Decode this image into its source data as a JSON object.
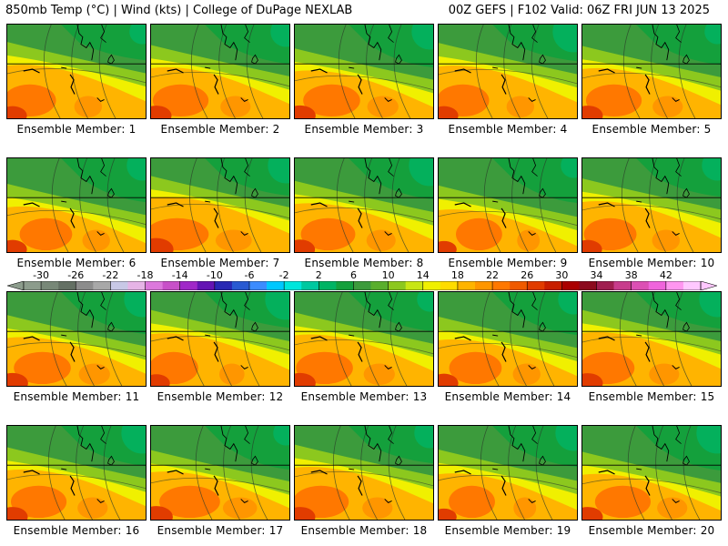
{
  "header": {
    "left_title": "850mb Temp (°C) | Wind (kts) | College of DuPage NEXLAB",
    "right_title": "00Z GEFS | F102 Valid: 06Z FRI JUN 13 2025"
  },
  "members": [
    {
      "label": "Ensemble Member: 1",
      "warmth": 0.55
    },
    {
      "label": "Ensemble Member: 2",
      "warmth": 0.6
    },
    {
      "label": "Ensemble Member: 3",
      "warmth": 0.62
    },
    {
      "label": "Ensemble Member: 4",
      "warmth": 0.55
    },
    {
      "label": "Ensemble Member: 5",
      "warmth": 0.6
    },
    {
      "label": "Ensemble Member: 6",
      "warmth": 0.55
    },
    {
      "label": "Ensemble Member: 7",
      "warmth": 0.72
    },
    {
      "label": "Ensemble Member: 8",
      "warmth": 0.58
    },
    {
      "label": "Ensemble Member: 9",
      "warmth": 0.45
    },
    {
      "label": "Ensemble Member: 10",
      "warmth": 0.55
    },
    {
      "label": "Ensemble Member: 11",
      "warmth": 0.62
    },
    {
      "label": "Ensemble Member: 12",
      "warmth": 0.5
    },
    {
      "label": "Ensemble Member: 13",
      "warmth": 0.62
    },
    {
      "label": "Ensemble Member: 14",
      "warmth": 0.55
    },
    {
      "label": "Ensemble Member: 15",
      "warmth": 0.6
    },
    {
      "label": "Ensemble Member: 16",
      "warmth": 0.6
    },
    {
      "label": "Ensemble Member: 17",
      "warmth": 0.68
    },
    {
      "label": "Ensemble Member: 18",
      "warmth": 0.6
    },
    {
      "label": "Ensemble Member: 19",
      "warmth": 0.45
    },
    {
      "label": "Ensemble Member: 20",
      "warmth": 0.6
    }
  ],
  "colorbar": {
    "ticks": [
      "-30",
      "-26",
      "-22",
      "-18",
      "-14",
      "-10",
      "-6",
      "-2",
      "2",
      "6",
      "10",
      "14",
      "18",
      "22",
      "26",
      "30",
      "34",
      "38",
      "42"
    ],
    "colors": [
      "#8c9c8c",
      "#788878",
      "#647064",
      "#8c8c8c",
      "#a8a8a8",
      "#c8c8e6",
      "#e6b4e6",
      "#dc78dc",
      "#c850c8",
      "#a028c8",
      "#6414b4",
      "#2828b4",
      "#285ad2",
      "#3c8cff",
      "#00c8ff",
      "#00e6dc",
      "#00c8a0",
      "#00b464",
      "#14a03c",
      "#3c9b3c",
      "#5aaf2d",
      "#8cc81e",
      "#c8e614",
      "#f0f000",
      "#ffdc00",
      "#ffb400",
      "#ff9600",
      "#ff7800",
      "#f05a00",
      "#e13c00",
      "#c81e00",
      "#aa0000",
      "#8c0a1e",
      "#a01e50",
      "#c83c8c",
      "#dc50b4",
      "#f064dc",
      "#ff96f0",
      "#ffc8ff"
    ]
  }
}
